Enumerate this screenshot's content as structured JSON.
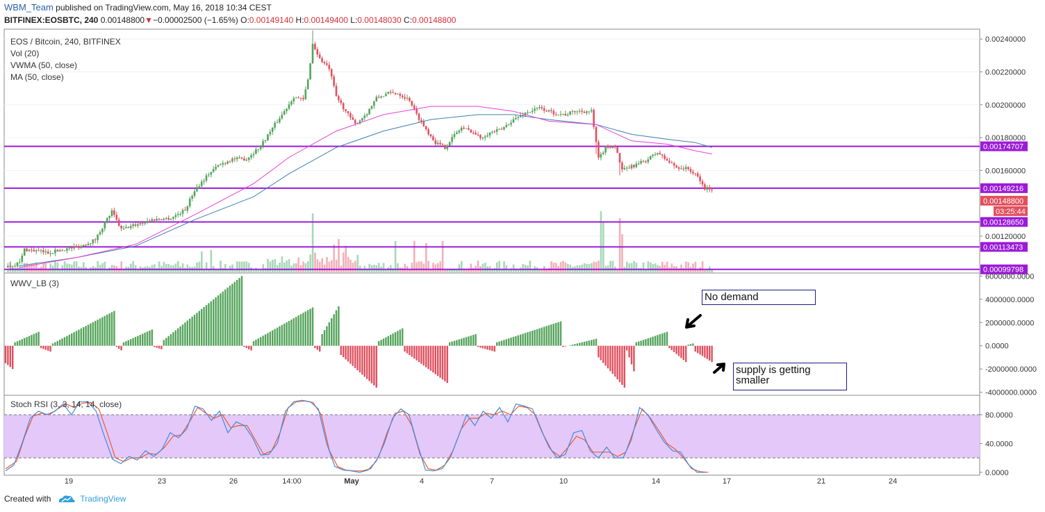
{
  "header": {
    "user": "WBM_Team",
    "published": "published on TradingView.com, May 16, 2018 10:34 CEST",
    "symbol": "BITFINEX:EOSBTC, 240",
    "last": "0.00148800",
    "change_arrow": "▼",
    "change": "−0.00002500 (−1.65%)",
    "o_label": "O:",
    "o_val": "0.00149140",
    "h_label": "H:",
    "h_val": "0.00149400",
    "l_label": "L:",
    "l_val": "0.00148030",
    "c_label": "C:",
    "c_val": "0.00148800"
  },
  "legend": {
    "title": "EOS / Bitcoin, 240, BITFINEX",
    "vol": "Vol (20)",
    "vwma": "VWMA (50, close)",
    "ma": "MA (50, close)",
    "wwv": "WWV_LB (3)",
    "stoch": "Stoch RSI (3, 3, 14, 14, close)"
  },
  "annotations": {
    "no_demand": "No demand",
    "supply": "supply is getting smaller"
  },
  "footer": {
    "created": "Created with",
    "brand": "TradingView",
    "logo_icon": "tradingview-cloud-icon"
  },
  "colors": {
    "up": "#53a35a",
    "down": "#e0505e",
    "level": "#9b1bd8",
    "vwma": "#3d7fb0",
    "ma": "#e83fd4",
    "stoch_k": "#3d8be0",
    "stoch_d": "#f0582a",
    "stoch_band": "#e4c8fa"
  },
  "chart_data": [
    {
      "type": "candlestick",
      "title": "EOS / Bitcoin, 240, BITFINEX",
      "x_tick_labels": [
        "19",
        "23",
        "26",
        "14:00",
        "May",
        "4",
        "7",
        "10",
        "14",
        "17",
        "21",
        "24"
      ],
      "y_tick_labels": [
        "0.00240000",
        "0.00220000",
        "0.00200000",
        "0.00180000",
        "0.00160000",
        "0.00120000"
      ],
      "ylim": [
        0.00098,
        0.00246
      ],
      "horizontal_levels": [
        "0.00174707",
        "0.00149216",
        "0.00128650",
        "0.00113473",
        "0.00099798"
      ],
      "last_price_label": "0.00148800",
      "countdown_label": "03:25:44",
      "close_path": [
        [
          0,
          0.00101
        ],
        [
          6,
          0.00104
        ],
        [
          8,
          0.00112
        ],
        [
          18,
          0.0011
        ],
        [
          25,
          0.00112
        ],
        [
          32,
          0.00114
        ],
        [
          38,
          0.00118
        ],
        [
          42,
          0.00128
        ],
        [
          45,
          0.00135
        ],
        [
          49,
          0.00124
        ],
        [
          55,
          0.00127
        ],
        [
          62,
          0.0013
        ],
        [
          70,
          0.00131
        ],
        [
          76,
          0.00136
        ],
        [
          80,
          0.00148
        ],
        [
          86,
          0.00158
        ],
        [
          90,
          0.00163
        ],
        [
          96,
          0.00167
        ],
        [
          102,
          0.00167
        ],
        [
          108,
          0.00175
        ],
        [
          114,
          0.00188
        ],
        [
          118,
          0.00196
        ],
        [
          122,
          0.00205
        ],
        [
          126,
          0.00203
        ],
        [
          128,
          0.00215
        ],
        [
          130,
          0.00237
        ],
        [
          133,
          0.00228
        ],
        [
          137,
          0.00222
        ],
        [
          140,
          0.00205
        ],
        [
          144,
          0.00196
        ],
        [
          148,
          0.00188
        ],
        [
          153,
          0.00195
        ],
        [
          157,
          0.00204
        ],
        [
          162,
          0.00207
        ],
        [
          166,
          0.00207
        ],
        [
          171,
          0.00203
        ],
        [
          174,
          0.00194
        ],
        [
          178,
          0.00185
        ],
        [
          182,
          0.00177
        ],
        [
          186,
          0.00174
        ],
        [
          189,
          0.0018
        ],
        [
          193,
          0.00186
        ],
        [
          197,
          0.00184
        ],
        [
          201,
          0.0018
        ],
        [
          205,
          0.00183
        ],
        [
          210,
          0.00185
        ],
        [
          214,
          0.0019
        ],
        [
          220,
          0.00195
        ],
        [
          226,
          0.00198
        ],
        [
          232,
          0.00195
        ],
        [
          237,
          0.00194
        ],
        [
          241,
          0.00196
        ],
        [
          245,
          0.00196
        ],
        [
          248,
          0.00196
        ],
        [
          251,
          0.00167
        ],
        [
          254,
          0.00174
        ],
        [
          258,
          0.00175
        ],
        [
          261,
          0.0016
        ],
        [
          266,
          0.00163
        ],
        [
          271,
          0.00166
        ],
        [
          276,
          0.00171
        ],
        [
          280,
          0.00166
        ],
        [
          284,
          0.00162
        ],
        [
          289,
          0.00161
        ],
        [
          293,
          0.00156
        ],
        [
          296,
          0.00149
        ],
        [
          299,
          0.00149
        ]
      ],
      "vwma_50": [
        [
          6,
          0.00102
        ],
        [
          30,
          0.00107
        ],
        [
          55,
          0.00114
        ],
        [
          80,
          0.0013
        ],
        [
          105,
          0.00144
        ],
        [
          120,
          0.00158
        ],
        [
          140,
          0.00174
        ],
        [
          160,
          0.00184
        ],
        [
          180,
          0.00191
        ],
        [
          200,
          0.00194
        ],
        [
          215,
          0.00194
        ],
        [
          230,
          0.00191
        ],
        [
          250,
          0.00188
        ],
        [
          265,
          0.00182
        ],
        [
          280,
          0.00179
        ],
        [
          292,
          0.00177
        ],
        [
          299,
          0.00174
        ]
      ],
      "ma_50": [
        [
          6,
          0.00101
        ],
        [
          30,
          0.00107
        ],
        [
          55,
          0.00115
        ],
        [
          80,
          0.00133
        ],
        [
          105,
          0.00152
        ],
        [
          120,
          0.00168
        ],
        [
          140,
          0.00184
        ],
        [
          160,
          0.00194
        ],
        [
          180,
          0.00199
        ],
        [
          200,
          0.00199
        ],
        [
          215,
          0.00196
        ],
        [
          230,
          0.0019
        ],
        [
          250,
          0.00188
        ],
        [
          265,
          0.00178
        ],
        [
          280,
          0.00176
        ],
        [
          292,
          0.00172
        ],
        [
          299,
          0.0017
        ]
      ]
    },
    {
      "type": "histogram",
      "title": "WWV_LB (3)",
      "y_tick_labels": [
        "6000000.0000",
        "4000000.0000",
        "2000000.0000",
        "0.0000",
        "-2000000.0000",
        "-4000000.0000"
      ],
      "ylim": [
        -4200000,
        6200000
      ],
      "segments": [
        {
          "start": 0,
          "end": 3,
          "min": -1500000,
          "peak": -2000000
        },
        {
          "start": 4,
          "end": 14,
          "min": 300000,
          "peak": 1200000
        },
        {
          "start": 15,
          "end": 19,
          "min": -200000,
          "peak": -500000
        },
        {
          "start": 20,
          "end": 46,
          "min": 200000,
          "peak": 3000000
        },
        {
          "start": 47,
          "end": 49,
          "min": -100000,
          "peak": -400000
        },
        {
          "start": 50,
          "end": 62,
          "min": 300000,
          "peak": 1400000
        },
        {
          "start": 63,
          "end": 66,
          "min": -100000,
          "peak": -300000
        },
        {
          "start": 67,
          "end": 100,
          "min": 500000,
          "peak": 6000000
        },
        {
          "start": 101,
          "end": 104,
          "min": -100000,
          "peak": -400000
        },
        {
          "start": 105,
          "end": 130,
          "min": 400000,
          "peak": 3300000
        },
        {
          "start": 131,
          "end": 133,
          "min": -200000,
          "peak": -500000
        },
        {
          "start": 134,
          "end": 141,
          "min": 1000000,
          "peak": 3400000
        },
        {
          "start": 142,
          "end": 157,
          "min": -800000,
          "peak": -3600000
        },
        {
          "start": 158,
          "end": 168,
          "min": 400000,
          "peak": 1500000
        },
        {
          "start": 169,
          "end": 187,
          "min": -500000,
          "peak": -3200000
        },
        {
          "start": 188,
          "end": 199,
          "min": 300000,
          "peak": 1000000
        },
        {
          "start": 200,
          "end": 207,
          "min": -100000,
          "peak": -500000
        },
        {
          "start": 208,
          "end": 235,
          "min": 300000,
          "peak": 2100000
        },
        {
          "start": 236,
          "end": 250,
          "min": -100000,
          "peak": 600000
        },
        {
          "start": 251,
          "end": 262,
          "min": -1000000,
          "peak": -3600000
        },
        {
          "start": 263,
          "end": 266,
          "min": -400000,
          "peak": -2200000
        },
        {
          "start": 267,
          "end": 280,
          "min": 300000,
          "peak": 1200000
        },
        {
          "start": 281,
          "end": 288,
          "min": -200000,
          "peak": -1400000
        },
        {
          "start": 289,
          "end": 291,
          "min": 100000,
          "peak": 200000
        },
        {
          "start": 292,
          "end": 299,
          "min": -500000,
          "peak": -1400000
        }
      ]
    },
    {
      "type": "line",
      "title": "Stoch RSI (3, 3, 14, 14, close)",
      "y_tick_labels": [
        "80.0000",
        "40.0000",
        "0.0000"
      ],
      "ylim": [
        -4,
        106
      ],
      "band": [
        20,
        80
      ],
      "k": [
        [
          0,
          2
        ],
        [
          3,
          10
        ],
        [
          6,
          40
        ],
        [
          9,
          75
        ],
        [
          12,
          85
        ],
        [
          15,
          80
        ],
        [
          18,
          85
        ],
        [
          21,
          95
        ],
        [
          24,
          80
        ],
        [
          27,
          98
        ],
        [
          30,
          98
        ],
        [
          33,
          85
        ],
        [
          36,
          50
        ],
        [
          39,
          18
        ],
        [
          42,
          12
        ],
        [
          45,
          22
        ],
        [
          48,
          17
        ],
        [
          51,
          30
        ],
        [
          54,
          22
        ],
        [
          57,
          32
        ],
        [
          60,
          55
        ],
        [
          63,
          48
        ],
        [
          66,
          60
        ],
        [
          69,
          92
        ],
        [
          72,
          88
        ],
        [
          75,
          72
        ],
        [
          78,
          85
        ],
        [
          81,
          55
        ],
        [
          84,
          70
        ],
        [
          87,
          65
        ],
        [
          90,
          48
        ],
        [
          93,
          24
        ],
        [
          96,
          25
        ],
        [
          99,
          40
        ],
        [
          102,
          85
        ],
        [
          105,
          98
        ],
        [
          108,
          100
        ],
        [
          111,
          98
        ],
        [
          114,
          88
        ],
        [
          117,
          40
        ],
        [
          120,
          8
        ],
        [
          123,
          3
        ],
        [
          126,
          2
        ],
        [
          129,
          0
        ],
        [
          132,
          3
        ],
        [
          135,
          15
        ],
        [
          138,
          40
        ],
        [
          141,
          75
        ],
        [
          144,
          88
        ],
        [
          147,
          80
        ],
        [
          150,
          40
        ],
        [
          153,
          3
        ],
        [
          156,
          2
        ],
        [
          159,
          5
        ],
        [
          162,
          20
        ],
        [
          165,
          50
        ],
        [
          168,
          80
        ],
        [
          171,
          65
        ],
        [
          174,
          85
        ],
        [
          177,
          75
        ],
        [
          180,
          90
        ],
        [
          183,
          70
        ],
        [
          186,
          95
        ],
        [
          189,
          92
        ],
        [
          192,
          88
        ],
        [
          195,
          60
        ],
        [
          198,
          35
        ],
        [
          201,
          20
        ],
        [
          204,
          25
        ],
        [
          207,
          55
        ],
        [
          210,
          58
        ],
        [
          213,
          30
        ],
        [
          216,
          20
        ],
        [
          219,
          35
        ],
        [
          222,
          20
        ],
        [
          225,
          20
        ],
        [
          228,
          45
        ],
        [
          231,
          90
        ],
        [
          234,
          80
        ],
        [
          237,
          60
        ],
        [
          240,
          42
        ],
        [
          243,
          30
        ],
        [
          246,
          28
        ],
        [
          249,
          10
        ],
        [
          252,
          0
        ],
        [
          255,
          0
        ]
      ],
      "d": [
        [
          0,
          5
        ],
        [
          4,
          15
        ],
        [
          7,
          50
        ],
        [
          10,
          78
        ],
        [
          13,
          82
        ],
        [
          16,
          80
        ],
        [
          19,
          88
        ],
        [
          22,
          95
        ],
        [
          25,
          90
        ],
        [
          28,
          96
        ],
        [
          31,
          97
        ],
        [
          34,
          88
        ],
        [
          37,
          55
        ],
        [
          40,
          20
        ],
        [
          43,
          15
        ],
        [
          46,
          20
        ],
        [
          49,
          20
        ],
        [
          52,
          26
        ],
        [
          55,
          25
        ],
        [
          58,
          35
        ],
        [
          61,
          50
        ],
        [
          64,
          52
        ],
        [
          67,
          70
        ],
        [
          70,
          90
        ],
        [
          73,
          82
        ],
        [
          76,
          75
        ],
        [
          79,
          80
        ],
        [
          82,
          62
        ],
        [
          85,
          65
        ],
        [
          88,
          65
        ],
        [
          91,
          45
        ],
        [
          94,
          25
        ],
        [
          97,
          30
        ],
        [
          100,
          55
        ],
        [
          103,
          90
        ],
        [
          106,
          98
        ],
        [
          109,
          99
        ],
        [
          112,
          97
        ],
        [
          115,
          80
        ],
        [
          118,
          30
        ],
        [
          121,
          8
        ],
        [
          124,
          3
        ],
        [
          127,
          2
        ],
        [
          130,
          2
        ],
        [
          133,
          5
        ],
        [
          136,
          22
        ],
        [
          139,
          55
        ],
        [
          142,
          82
        ],
        [
          145,
          85
        ],
        [
          148,
          65
        ],
        [
          151,
          25
        ],
        [
          154,
          5
        ],
        [
          157,
          3
        ],
        [
          160,
          10
        ],
        [
          163,
          30
        ],
        [
          166,
          60
        ],
        [
          169,
          75
        ],
        [
          172,
          75
        ],
        [
          175,
          82
        ],
        [
          178,
          80
        ],
        [
          181,
          85
        ],
        [
          184,
          80
        ],
        [
          187,
          92
        ],
        [
          190,
          90
        ],
        [
          193,
          80
        ],
        [
          196,
          52
        ],
        [
          199,
          30
        ],
        [
          202,
          22
        ],
        [
          205,
          35
        ],
        [
          208,
          50
        ],
        [
          211,
          45
        ],
        [
          214,
          28
        ],
        [
          217,
          28
        ],
        [
          220,
          28
        ],
        [
          223,
          22
        ],
        [
          226,
          28
        ],
        [
          229,
          60
        ],
        [
          232,
          88
        ],
        [
          235,
          75
        ],
        [
          238,
          58
        ],
        [
          241,
          40
        ],
        [
          244,
          32
        ],
        [
          247,
          20
        ],
        [
          250,
          5
        ],
        [
          253,
          1
        ],
        [
          256,
          0
        ]
      ]
    }
  ]
}
